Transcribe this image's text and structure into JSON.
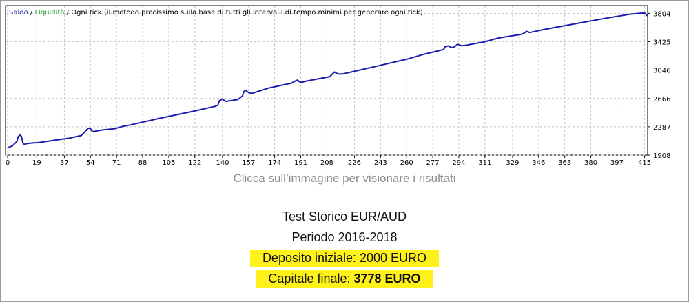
{
  "chart_data": {
    "type": "line",
    "legend": {
      "items": [
        {
          "label": "Saldo",
          "color": "#1c1caf"
        },
        {
          "label": "Liquidità",
          "color": "#2ea62e"
        }
      ],
      "note": "Ogni tick (il metodo precissimo sulla base di tutti gli intervalli di tempo minimi per generare ogni tick)",
      "placement": "top-left"
    },
    "x_ticks": [
      0,
      19,
      37,
      54,
      71,
      88,
      105,
      122,
      140,
      157,
      174,
      191,
      208,
      226,
      243,
      260,
      277,
      294,
      311,
      329,
      346,
      363,
      380,
      397,
      415
    ],
    "y_ticks": [
      1908,
      2287,
      2666,
      3046,
      3425,
      3804
    ],
    "xlim": [
      0,
      417
    ],
    "ylim": [
      1908,
      3890
    ],
    "grid": true,
    "series": [
      {
        "name": "Saldo",
        "color": "#1c1caf",
        "x": [
          0,
          3,
          6,
          7,
          8,
          9,
          10,
          11,
          12,
          13,
          15,
          20,
          30,
          40,
          48,
          50,
          52,
          53,
          54,
          55,
          56,
          58,
          62,
          70,
          73,
          75,
          80,
          100,
          120,
          135,
          137,
          138,
          140,
          142,
          150,
          153,
          154,
          155,
          157,
          159,
          170,
          185,
          188,
          189,
          190,
          192,
          194,
          210,
          212,
          213,
          214,
          216,
          218,
          240,
          260,
          270,
          280,
          284,
          285,
          287,
          289,
          290,
          292,
          293,
          294,
          296,
          298,
          310,
          320,
          335,
          337,
          338,
          340,
          342,
          350,
          370,
          390,
          405,
          412,
          415,
          417
        ],
        "y": [
          2008,
          2030,
          2090,
          2158,
          2178,
          2160,
          2070,
          2048,
          2058,
          2062,
          2068,
          2075,
          2105,
          2135,
          2170,
          2212,
          2258,
          2270,
          2262,
          2230,
          2222,
          2232,
          2245,
          2262,
          2280,
          2292,
          2312,
          2405,
          2490,
          2560,
          2575,
          2635,
          2658,
          2626,
          2651,
          2700,
          2760,
          2775,
          2745,
          2732,
          2805,
          2870,
          2905,
          2912,
          2890,
          2882,
          2895,
          2958,
          3000,
          3020,
          3005,
          2992,
          2992,
          3095,
          3190,
          3250,
          3300,
          3320,
          3355,
          3370,
          3350,
          3345,
          3370,
          3390,
          3385,
          3370,
          3376,
          3420,
          3475,
          3525,
          3545,
          3565,
          3548,
          3555,
          3590,
          3665,
          3740,
          3790,
          3805,
          3808,
          3770
        ]
      }
    ]
  },
  "caption": "Clicca sull’immagine per visionare i risultati",
  "info": {
    "title": "Test Storico EUR/AUD",
    "period": "Periodo 2016-2018",
    "deposit_label": "Deposito iniziale: 2000 EURO",
    "final_label": "Capitale finale: ",
    "final_value": "3778 EURO",
    "highlight_color": "#fff21a"
  }
}
